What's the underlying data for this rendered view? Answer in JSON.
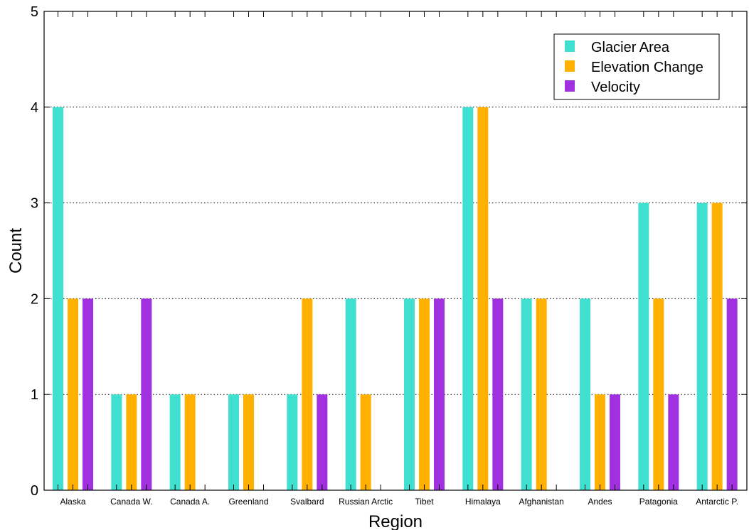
{
  "chart_data": {
    "type": "bar",
    "title": "",
    "xlabel": "Region",
    "ylabel": "Count",
    "ylim": [
      0,
      5
    ],
    "yticks": [
      0,
      1,
      2,
      3,
      4,
      5
    ],
    "grid": "horizontal dotted at y-ticks 1-4",
    "legend_position": "top-right",
    "categories": [
      "Alaska",
      "Canada W.",
      "Canada A.",
      "Greenland",
      "Svalbard",
      "Russian Arctic",
      "Tibet",
      "Himalaya",
      "Afghanistan",
      "Andes",
      "Patagonia",
      "Antarctic P."
    ],
    "series": [
      {
        "name": "Glacier Area",
        "color": "#40e0d0",
        "values": [
          4,
          1,
          1,
          1,
          1,
          2,
          2,
          4,
          2,
          2,
          3,
          3
        ]
      },
      {
        "name": "Elevation Change",
        "color": "#ffb000",
        "values": [
          2,
          1,
          1,
          1,
          2,
          1,
          2,
          4,
          2,
          1,
          2,
          3
        ]
      },
      {
        "name": "Velocity",
        "color": "#a030e0",
        "values": [
          2,
          2,
          0,
          0,
          1,
          0,
          2,
          2,
          0,
          1,
          1,
          2
        ]
      }
    ]
  }
}
